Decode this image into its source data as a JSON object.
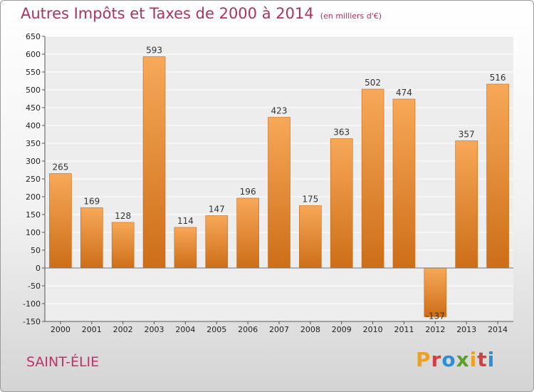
{
  "title": "Autres Impôts et Taxes de 2000 à 2014",
  "unit": "(en milliers d'€)",
  "city": "SAINT-ÉLIE",
  "logo": {
    "text": "Proxiti",
    "colors": [
      "#f0a020",
      "#d04040",
      "#2a8fd6",
      "#5aa02c",
      "#f0a020",
      "#d04040",
      "#2a8fd6"
    ]
  },
  "colors": {
    "bar_light": "#f7a858",
    "bar_dark": "#cd6e18",
    "title": "#b03060"
  },
  "chart_data": {
    "type": "bar",
    "title": "Autres Impôts et Taxes de 2000 à 2014",
    "xlabel": "",
    "ylabel": "",
    "categories": [
      "2000",
      "2001",
      "2002",
      "2003",
      "2004",
      "2005",
      "2006",
      "2007",
      "2008",
      "2009",
      "2010",
      "2011",
      "2012",
      "2013",
      "2014"
    ],
    "values": [
      265,
      169,
      128,
      593,
      114,
      147,
      196,
      423,
      175,
      363,
      502,
      474,
      -137,
      357,
      516
    ],
    "ylim": [
      -150,
      650
    ],
    "yticks": [
      -150,
      -100,
      -50,
      0,
      50,
      100,
      150,
      200,
      250,
      300,
      350,
      400,
      450,
      500,
      550,
      600,
      650
    ],
    "grid": true,
    "legend": "none"
  }
}
